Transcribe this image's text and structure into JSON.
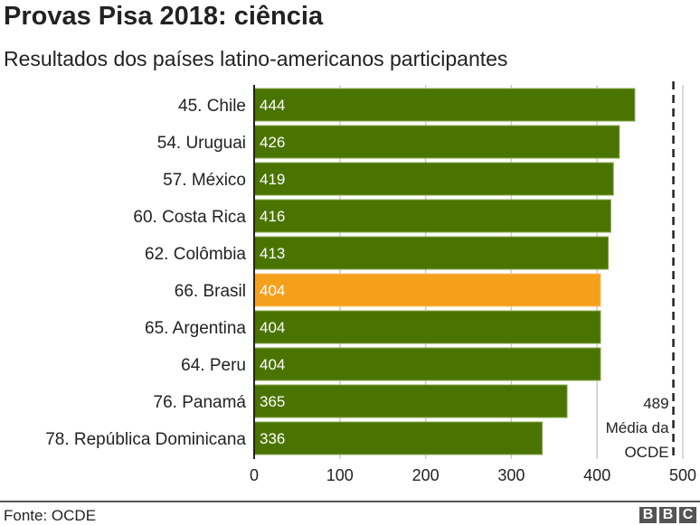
{
  "chart_data": {
    "type": "bar",
    "orientation": "horizontal",
    "title": "Provas Pisa 2018: ciência",
    "subtitle": "Resultados dos países latino-americanos participantes",
    "categories": [
      "45. Chile",
      "54. Uruguai",
      "57. México",
      "60. Costa Rica",
      "62. Colômbia",
      "66. Brasil",
      "65. Argentina",
      "64. Peru",
      "76. Panamá",
      "78. República Dominicana"
    ],
    "values": [
      444,
      426,
      419,
      416,
      413,
      404,
      404,
      404,
      365,
      336
    ],
    "highlight": "66. Brasil",
    "colors": {
      "bar": "#4a7400",
      "highlight": "#f5a01a",
      "grid": "#cccccc"
    },
    "xlim": [
      0,
      500
    ],
    "xticks": [
      0,
      100,
      200,
      300,
      400,
      500
    ],
    "grid": true,
    "reference_line": {
      "value": 489,
      "label": [
        "489",
        "Média da",
        "OCDE"
      ]
    },
    "source": "Fonte: OCDE"
  },
  "logo": "BBC"
}
